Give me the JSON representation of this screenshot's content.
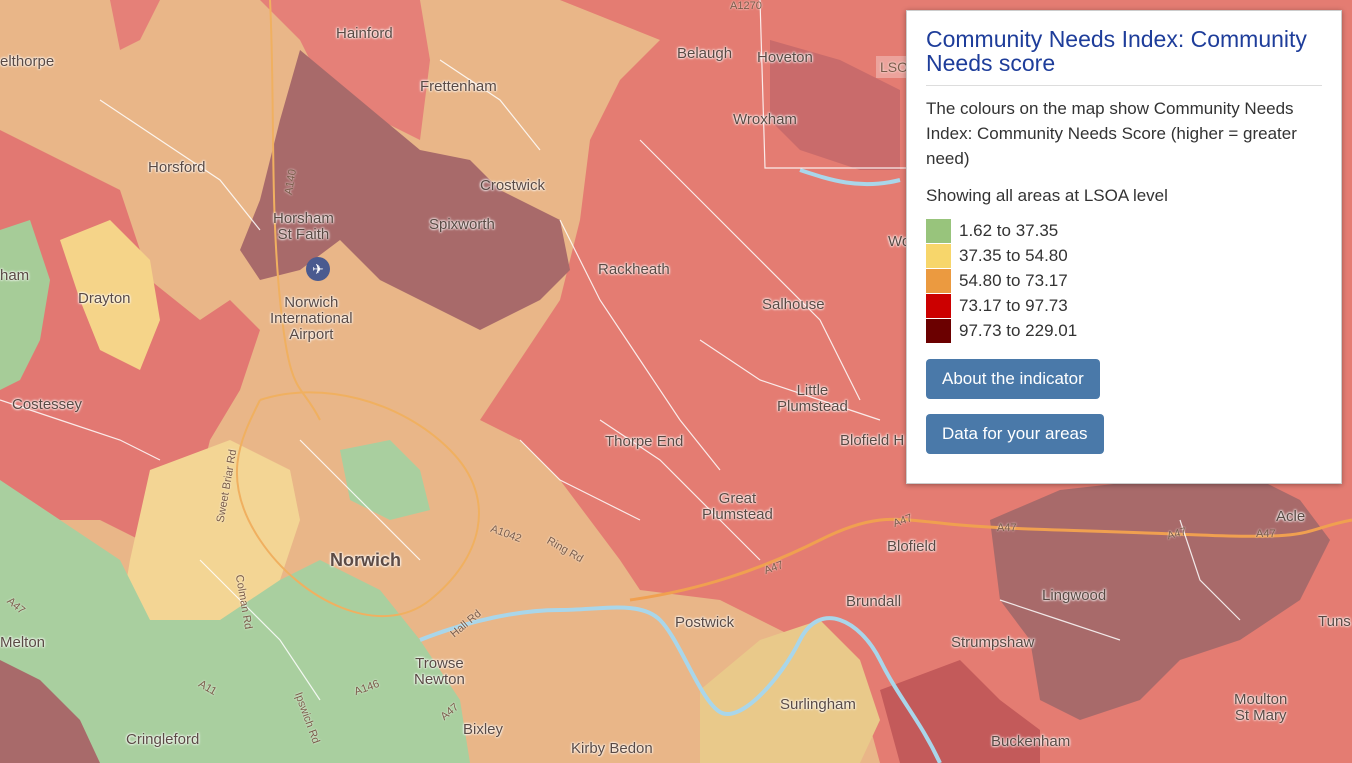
{
  "panel": {
    "title": "Community Needs Index: Community Needs score",
    "description": "The colours on the map show Community Needs Index: Community Needs Score (higher = greater need)",
    "showing": "Showing all areas at LSOA level",
    "legend": [
      {
        "label": "1.62 to 37.35",
        "color": "#98c47c"
      },
      {
        "label": "37.35 to 54.80",
        "color": "#f7d66b"
      },
      {
        "label": "54.80 to 73.17",
        "color": "#eb9a40"
      },
      {
        "label": "73.17 to 97.73",
        "color": "#cc0000"
      },
      {
        "label": "97.73 to 229.01",
        "color": "#6b0000"
      }
    ],
    "about_button": "About the indicator",
    "data_button": "Data for your areas"
  },
  "places": {
    "hainford": "Hainford",
    "felthorpe": "elthorpe",
    "frettenham": "Frettenham",
    "belaugh": "Belaugh",
    "hoveton": "Hoveton",
    "wroxham": "Wroxham",
    "horsford": "Horsford",
    "crostwick": "Crostwick",
    "horsham": "Horsham\nSt Faith",
    "spixworth": "Spixworth",
    "rackheath": "Rackheath",
    "salhouse": "Salhouse",
    "drayton": "Drayton",
    "taverham": "ham",
    "airport": "Norwich\nInternational\nAirport",
    "costessey": "Costessey",
    "little_plumstead": "Little\nPlumstead",
    "blofield_heath": "Blofield H",
    "thorpe_end": "Thorpe End",
    "great_plumstead": "Great\nPlumstead",
    "blofield": "Blofield",
    "norwich": "Norwich",
    "brundall": "Brundall",
    "lingwood": "Lingwood",
    "acle": "Acle",
    "postwick": "Postwick",
    "strumpshaw": "Strumpshaw",
    "tunstall": "Tuns",
    "melton": "Melton",
    "trowse": "Trowse\nNewton",
    "surlingham": "Surlingham",
    "moulton": "Moulton\nSt Mary",
    "bixley": "Bixley",
    "cringleford": "Cringleford",
    "kirby_bedon": "Kirby Bedon",
    "buckenham": "Buckenham",
    "woodbastwick": "Wo"
  },
  "roads": {
    "a47_left": "A47",
    "a47_mid": "A47",
    "a47_r1": "A47",
    "a47_r2": "A47",
    "a47_r3": "A47",
    "a47_r4": "A47",
    "a47_low": "A47",
    "a140": "A140",
    "a146": "A146",
    "a11": "A11",
    "a1042": "A1042",
    "a1270": "A1270",
    "ring_rd": "Ring Rd",
    "sweet_briar": "Sweet Briar Rd",
    "colman": "Colman Rd",
    "ipswich": "Ipswich Rd",
    "hall_rd": "Hall Rd",
    "lsoa": "LSO"
  }
}
